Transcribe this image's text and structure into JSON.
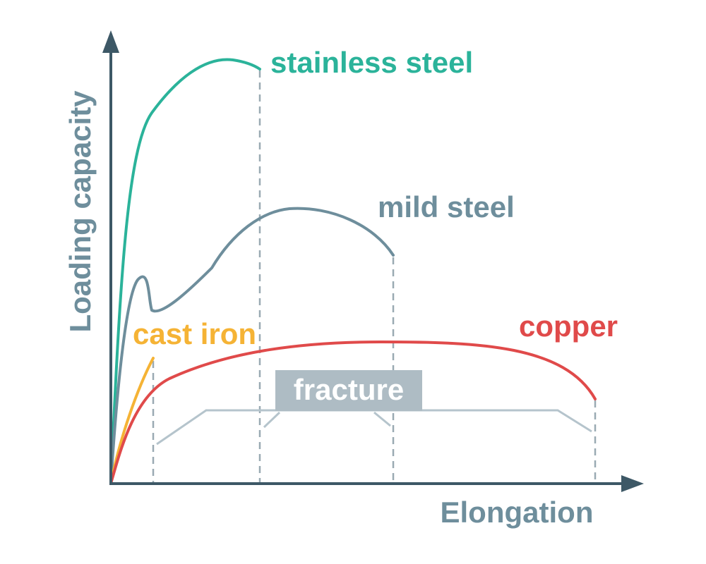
{
  "axes": {
    "y_label": "Loading capacity",
    "x_label": "Elongation"
  },
  "curves": [
    {
      "label": "stainless steel"
    },
    {
      "label": "mild steel"
    },
    {
      "label": "cast iron"
    },
    {
      "label": "copper"
    }
  ],
  "annotation": {
    "label": "fracture"
  }
}
